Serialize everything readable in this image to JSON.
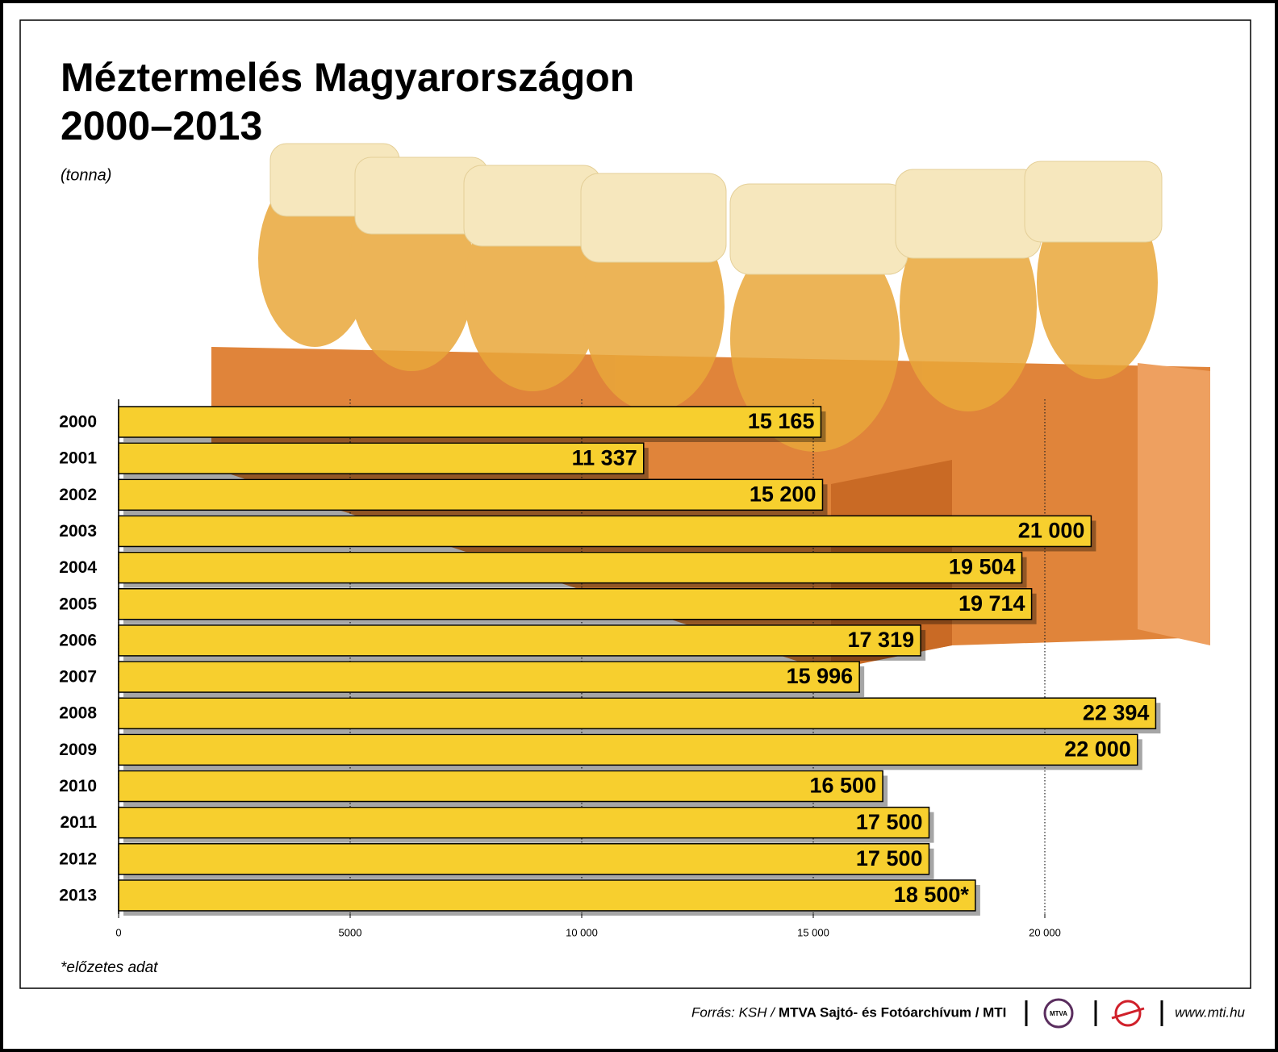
{
  "chart_data": {
    "type": "bar",
    "orientation": "horizontal",
    "title": "Méztermelés Magyarországon",
    "subtitle": "2000–2013",
    "unit_label": "(tonna)",
    "categories": [
      "2000",
      "2001",
      "2002",
      "2003",
      "2004",
      "2005",
      "2006",
      "2007",
      "2008",
      "2009",
      "2010",
      "2011",
      "2012",
      "2013"
    ],
    "values": [
      15165,
      11337,
      15200,
      21000,
      19504,
      19714,
      17319,
      15996,
      22394,
      22000,
      16500,
      17500,
      17500,
      18500
    ],
    "value_labels": [
      "15 165",
      "11 337",
      "15 200",
      "21 000",
      "19 504",
      "19 714",
      "17 319",
      "15 996",
      "22 394",
      "22 000",
      "16 500",
      "17 500",
      "17 500",
      "18 500*"
    ],
    "color": "#f7cf2e",
    "xlim": [
      0,
      24000
    ],
    "xticks": [
      0,
      5000,
      {
        "value": 10000,
        "label": "10 000"
      },
      {
        "value": 15000,
        "label": "15 000"
      },
      {
        "value": 20000,
        "label": "20 000"
      }
    ],
    "grid": true,
    "footnote": "*előzetes adat",
    "source_parts": [
      "Forrás: KSH /",
      "MTVA Sajtó- és Fotóarchívum / MTI"
    ],
    "logo_text": "MTVA",
    "website": "www.mti.hu"
  }
}
